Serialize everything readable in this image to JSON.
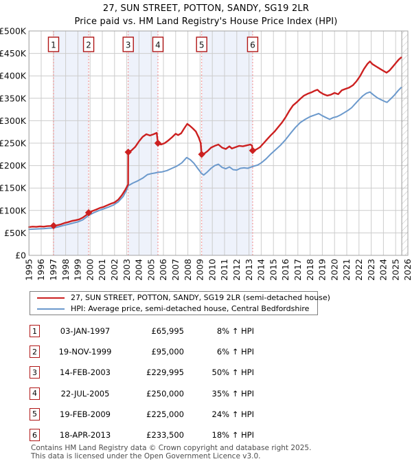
{
  "page": {
    "title_line1": "27, SUN STREET, POTTON, SANDY, SG19 2LR",
    "title_line2": "Price paid vs. HM Land Registry's House Price Index (HPI)"
  },
  "colors": {
    "price_red": "#cc2020",
    "hpi_blue": "#6b99cc",
    "sale_dash": "#f28080",
    "band_fill": "#eef2fb",
    "grid": "#cccccc",
    "plot_border": "#a3a3a3",
    "badge_border": "#b01515",
    "hatch": "#bfbfbf"
  },
  "chart_data": {
    "type": "line",
    "title": "27, SUN STREET, POTTON, SANDY, SG19 2LR",
    "subtitle": "Price paid vs. HM Land Registry's House Price Index (HPI)",
    "x_min": 1995,
    "x_max": 2026,
    "y_min": 0,
    "y_max": 500000,
    "grid": true,
    "legend_position": "below",
    "y_ticks": [
      {
        "value": 0,
        "label": "£0"
      },
      {
        "value": 50000,
        "label": "£50K"
      },
      {
        "value": 100000,
        "label": "£100K"
      },
      {
        "value": 150000,
        "label": "£150K"
      },
      {
        "value": 200000,
        "label": "£200K"
      },
      {
        "value": 250000,
        "label": "£250K"
      },
      {
        "value": 300000,
        "label": "£300K"
      },
      {
        "value": 350000,
        "label": "£350K"
      },
      {
        "value": 400000,
        "label": "£400K"
      },
      {
        "value": 450000,
        "label": "£450K"
      },
      {
        "value": 500000,
        "label": "£500K"
      }
    ],
    "x_tick_years": [
      1995,
      1996,
      1997,
      1998,
      1999,
      2000,
      2001,
      2002,
      2003,
      2004,
      2005,
      2006,
      2007,
      2008,
      2009,
      2010,
      2011,
      2012,
      2013,
      2014,
      2015,
      2016,
      2017,
      2018,
      2019,
      2020,
      2021,
      2022,
      2023,
      2024,
      2025,
      2026
    ],
    "ownership_bands": [
      [
        1997.01,
        1999.88
      ],
      [
        2003.12,
        2005.55
      ],
      [
        2009.13,
        2013.3
      ]
    ],
    "future_hatch_from": 2025.5,
    "sales": [
      {
        "n": "1",
        "year": 1997.01,
        "price": 65995
      },
      {
        "n": "2",
        "year": 1999.88,
        "price": 95000
      },
      {
        "n": "3",
        "year": 2003.12,
        "price": 229995
      },
      {
        "n": "4",
        "year": 2005.55,
        "price": 250000
      },
      {
        "n": "5",
        "year": 2009.13,
        "price": 225000
      },
      {
        "n": "6",
        "year": 2013.3,
        "price": 233500
      }
    ],
    "series": [
      {
        "name": "27, SUN STREET, POTTON, SANDY, SG19 2LR (semi-detached house)",
        "color": "#cc2020",
        "width": 2.4,
        "points": [
          [
            1995.0,
            63000
          ],
          [
            1995.3,
            64000
          ],
          [
            1995.6,
            63500
          ],
          [
            1995.9,
            64500
          ],
          [
            1996.2,
            64000
          ],
          [
            1996.5,
            65000
          ],
          [
            1996.8,
            65500
          ],
          [
            1997.01,
            65995
          ],
          [
            1997.3,
            67000
          ],
          [
            1997.6,
            69000
          ],
          [
            1997.9,
            72000
          ],
          [
            1998.2,
            74000
          ],
          [
            1998.5,
            76500
          ],
          [
            1998.8,
            78000
          ],
          [
            1999.1,
            80000
          ],
          [
            1999.4,
            84000
          ],
          [
            1999.7,
            90000
          ],
          [
            1999.88,
            95000
          ],
          [
            2000.2,
            99000
          ],
          [
            2000.5,
            102000
          ],
          [
            2000.8,
            105500
          ],
          [
            2001.1,
            108000
          ],
          [
            2001.4,
            111500
          ],
          [
            2001.7,
            115000
          ],
          [
            2002.0,
            118000
          ],
          [
            2002.3,
            124000
          ],
          [
            2002.6,
            134000
          ],
          [
            2002.9,
            147000
          ],
          [
            2003.05,
            155000
          ],
          [
            2003.11,
            158000
          ],
          [
            2003.12,
            229995
          ],
          [
            2003.4,
            234000
          ],
          [
            2003.7,
            242000
          ],
          [
            2004.0,
            254000
          ],
          [
            2004.3,
            264000
          ],
          [
            2004.6,
            270000
          ],
          [
            2004.9,
            267000
          ],
          [
            2005.2,
            270000
          ],
          [
            2005.45,
            273000
          ],
          [
            2005.55,
            250000
          ],
          [
            2005.8,
            247000
          ],
          [
            2006.1,
            250000
          ],
          [
            2006.4,
            256000
          ],
          [
            2006.7,
            263000
          ],
          [
            2007.0,
            271000
          ],
          [
            2007.2,
            268000
          ],
          [
            2007.45,
            272000
          ],
          [
            2007.7,
            283000
          ],
          [
            2007.95,
            293000
          ],
          [
            2008.15,
            289000
          ],
          [
            2008.4,
            283000
          ],
          [
            2008.65,
            276000
          ],
          [
            2008.9,
            262000
          ],
          [
            2009.05,
            250000
          ],
          [
            2009.13,
            225000
          ],
          [
            2009.35,
            227000
          ],
          [
            2009.6,
            232000
          ],
          [
            2009.9,
            240000
          ],
          [
            2010.2,
            244000
          ],
          [
            2010.5,
            247000
          ],
          [
            2010.8,
            240000
          ],
          [
            2011.1,
            237000
          ],
          [
            2011.4,
            243000
          ],
          [
            2011.6,
            238000
          ],
          [
            2011.9,
            241000
          ],
          [
            2012.2,
            244000
          ],
          [
            2012.5,
            243000
          ],
          [
            2012.8,
            245000
          ],
          [
            2013.1,
            247000
          ],
          [
            2013.25,
            245000
          ],
          [
            2013.3,
            233500
          ],
          [
            2013.6,
            236000
          ],
          [
            2013.9,
            241000
          ],
          [
            2014.2,
            250000
          ],
          [
            2014.5,
            259000
          ],
          [
            2014.8,
            268000
          ],
          [
            2015.1,
            276000
          ],
          [
            2015.4,
            286000
          ],
          [
            2015.7,
            296000
          ],
          [
            2016.0,
            308000
          ],
          [
            2016.3,
            322000
          ],
          [
            2016.6,
            334000
          ],
          [
            2016.9,
            341000
          ],
          [
            2017.2,
            349000
          ],
          [
            2017.5,
            356000
          ],
          [
            2017.8,
            360000
          ],
          [
            2018.1,
            363000
          ],
          [
            2018.4,
            367000
          ],
          [
            2018.6,
            369000
          ],
          [
            2018.8,
            364000
          ],
          [
            2019.1,
            359000
          ],
          [
            2019.4,
            356000
          ],
          [
            2019.7,
            358000
          ],
          [
            2020.0,
            362000
          ],
          [
            2020.3,
            359000
          ],
          [
            2020.6,
            368000
          ],
          [
            2020.9,
            371000
          ],
          [
            2021.2,
            374000
          ],
          [
            2021.5,
            379000
          ],
          [
            2021.8,
            388000
          ],
          [
            2022.1,
            400000
          ],
          [
            2022.4,
            415000
          ],
          [
            2022.7,
            427000
          ],
          [
            2022.9,
            432000
          ],
          [
            2023.1,
            426000
          ],
          [
            2023.4,
            421000
          ],
          [
            2023.7,
            416000
          ],
          [
            2024.0,
            411000
          ],
          [
            2024.25,
            407000
          ],
          [
            2024.5,
            412000
          ],
          [
            2024.75,
            420000
          ],
          [
            2025.0,
            428000
          ],
          [
            2025.25,
            436000
          ],
          [
            2025.45,
            441000
          ]
        ]
      },
      {
        "name": "HPI: Average price, semi-detached house, Central Bedfordshire",
        "color": "#6b99cc",
        "width": 2,
        "points": [
          [
            1995.0,
            58000
          ],
          [
            1995.4,
            58500
          ],
          [
            1995.8,
            59000
          ],
          [
            1996.2,
            59500
          ],
          [
            1996.6,
            60500
          ],
          [
            1997.0,
            61000
          ],
          [
            1997.4,
            63500
          ],
          [
            1997.8,
            66500
          ],
          [
            1998.2,
            69000
          ],
          [
            1998.6,
            72000
          ],
          [
            1999.0,
            74500
          ],
          [
            1999.4,
            79000
          ],
          [
            1999.88,
            89000
          ],
          [
            2000.3,
            95000
          ],
          [
            2000.7,
            99500
          ],
          [
            2001.1,
            103500
          ],
          [
            2001.5,
            107500
          ],
          [
            2001.9,
            112000
          ],
          [
            2002.3,
            119000
          ],
          [
            2002.7,
            131000
          ],
          [
            2003.0,
            146000
          ],
          [
            2003.12,
            155000
          ],
          [
            2003.5,
            161000
          ],
          [
            2003.9,
            166000
          ],
          [
            2004.3,
            172000
          ],
          [
            2004.7,
            180000
          ],
          [
            2005.0,
            182000
          ],
          [
            2005.3,
            183500
          ],
          [
            2005.55,
            185000
          ],
          [
            2005.9,
            186000
          ],
          [
            2006.3,
            189000
          ],
          [
            2006.7,
            194000
          ],
          [
            2007.1,
            199000
          ],
          [
            2007.5,
            206000
          ],
          [
            2007.9,
            218000
          ],
          [
            2008.2,
            213000
          ],
          [
            2008.5,
            205000
          ],
          [
            2008.8,
            194000
          ],
          [
            2009.1,
            183000
          ],
          [
            2009.3,
            179000
          ],
          [
            2009.6,
            186000
          ],
          [
            2009.9,
            194000
          ],
          [
            2010.2,
            200000
          ],
          [
            2010.5,
            203000
          ],
          [
            2010.8,
            196000
          ],
          [
            2011.1,
            193000
          ],
          [
            2011.4,
            197000
          ],
          [
            2011.7,
            191000
          ],
          [
            2012.0,
            190000
          ],
          [
            2012.3,
            194000
          ],
          [
            2012.6,
            195000
          ],
          [
            2012.9,
            194000
          ],
          [
            2013.3,
            198000
          ],
          [
            2013.7,
            201000
          ],
          [
            2014.0,
            206000
          ],
          [
            2014.4,
            215000
          ],
          [
            2014.8,
            226000
          ],
          [
            2015.2,
            236000
          ],
          [
            2015.6,
            246000
          ],
          [
            2016.0,
            258000
          ],
          [
            2016.4,
            272000
          ],
          [
            2016.8,
            285000
          ],
          [
            2017.2,
            296000
          ],
          [
            2017.6,
            303000
          ],
          [
            2018.0,
            309000
          ],
          [
            2018.4,
            313000
          ],
          [
            2018.7,
            316000
          ],
          [
            2019.0,
            311000
          ],
          [
            2019.3,
            307000
          ],
          [
            2019.6,
            303000
          ],
          [
            2019.9,
            307000
          ],
          [
            2020.2,
            309000
          ],
          [
            2020.5,
            313000
          ],
          [
            2020.8,
            318000
          ],
          [
            2021.1,
            323000
          ],
          [
            2021.4,
            329000
          ],
          [
            2021.7,
            338000
          ],
          [
            2022.0,
            347000
          ],
          [
            2022.3,
            355000
          ],
          [
            2022.6,
            361000
          ],
          [
            2022.9,
            364000
          ],
          [
            2023.2,
            357000
          ],
          [
            2023.5,
            351000
          ],
          [
            2023.8,
            347000
          ],
          [
            2024.1,
            343000
          ],
          [
            2024.3,
            341000
          ],
          [
            2024.6,
            349000
          ],
          [
            2024.9,
            357000
          ],
          [
            2025.2,
            367000
          ],
          [
            2025.45,
            374000
          ]
        ]
      }
    ]
  },
  "legend": {
    "items": [
      {
        "label": "27, SUN STREET, POTTON, SANDY, SG19 2LR (semi-detached house)",
        "color": "#cc2020",
        "thickness": 2.5
      },
      {
        "label": "HPI: Average price, semi-detached house, Central Bedfordshire",
        "color": "#6b99cc",
        "thickness": 2.5
      }
    ]
  },
  "table": {
    "rows": [
      {
        "num": "1",
        "date": "03-JAN-1997",
        "price": "£65,995",
        "delta": "8% ↑ HPI"
      },
      {
        "num": "2",
        "date": "19-NOV-1999",
        "price": "£95,000",
        "delta": "6% ↑ HPI"
      },
      {
        "num": "3",
        "date": "14-FEB-2003",
        "price": "£229,995",
        "delta": "50% ↑ HPI"
      },
      {
        "num": "4",
        "date": "22-JUL-2005",
        "price": "£250,000",
        "delta": "35% ↑ HPI"
      },
      {
        "num": "5",
        "date": "19-FEB-2009",
        "price": "£225,000",
        "delta": "24% ↑ HPI"
      },
      {
        "num": "6",
        "date": "18-APR-2013",
        "price": "£233,500",
        "delta": "18% ↑ HPI"
      }
    ]
  },
  "footer": {
    "line1": "Contains HM Land Registry data © Crown copyright and database right 2025.",
    "line2": "This data is licensed under the Open Government Licence v3.0."
  }
}
